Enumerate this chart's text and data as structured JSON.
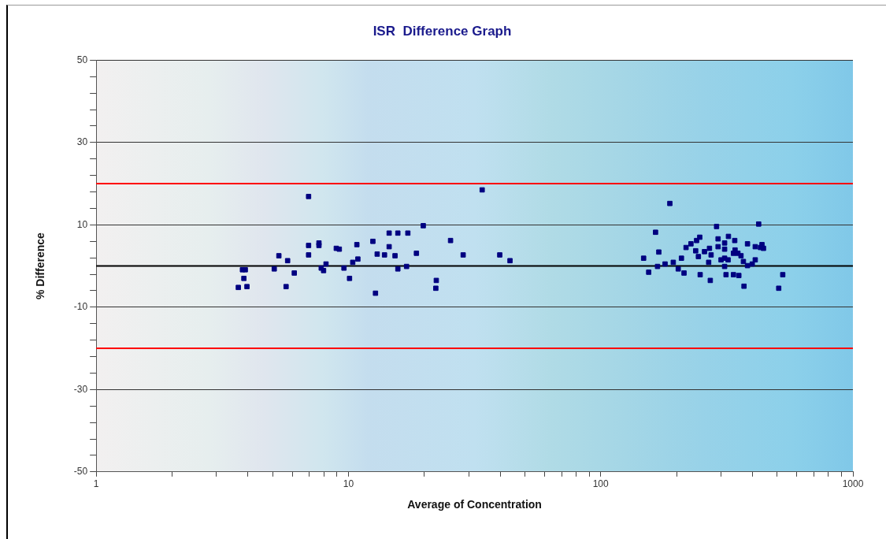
{
  "chart_data": {
    "type": "scatter",
    "title": "ISR  Difference Graph",
    "xlabel": "Average of Concentration",
    "ylabel": "% Difference",
    "log": "x",
    "marker": "square",
    "grid": "y",
    "legend": false,
    "xlim": [
      1,
      1000
    ],
    "xticks": [
      1,
      {
        "value": 2,
        "label": null
      },
      {
        "value": 3,
        "label": null
      },
      {
        "value": 4,
        "label": null
      },
      {
        "value": 5,
        "label": null
      },
      {
        "value": 6,
        "label": null
      },
      {
        "value": 7,
        "label": null
      },
      {
        "value": 8,
        "label": null
      },
      {
        "value": 9,
        "label": null
      },
      10,
      {
        "value": 20,
        "label": null
      },
      {
        "value": 30,
        "label": null
      },
      {
        "value": 40,
        "label": null
      },
      {
        "value": 50,
        "label": null
      },
      {
        "value": 60,
        "label": null
      },
      {
        "value": 70,
        "label": null
      },
      {
        "value": 80,
        "label": null
      },
      {
        "value": 90,
        "label": null
      },
      100,
      {
        "value": 200,
        "label": null
      },
      {
        "value": 300,
        "label": null
      },
      {
        "value": 400,
        "label": null
      },
      {
        "value": 500,
        "label": null
      },
      {
        "value": 600,
        "label": null
      },
      {
        "value": 700,
        "label": null
      },
      {
        "value": 800,
        "label": null
      },
      {
        "value": 900,
        "label": null
      },
      1000
    ],
    "ylim": [
      -50,
      50
    ],
    "yticks": [
      -50,
      {
        "value": -46,
        "label": null
      },
      {
        "value": -42,
        "label": null
      },
      {
        "value": -38,
        "label": null
      },
      {
        "value": -34,
        "label": null
      },
      -30,
      {
        "value": -26,
        "label": null
      },
      {
        "value": -22,
        "label": null
      },
      {
        "value": -18,
        "label": null
      },
      {
        "value": -14,
        "label": null
      },
      -10,
      {
        "value": -6,
        "label": null
      },
      {
        "value": -2,
        "label": null
      },
      {
        "value": 2,
        "label": null
      },
      {
        "value": 6,
        "label": null
      },
      10,
      {
        "value": 14,
        "label": null
      },
      {
        "value": 18,
        "label": null
      },
      {
        "value": 22,
        "label": null
      },
      {
        "value": 26,
        "label": null
      },
      30,
      {
        "value": 34,
        "label": null
      },
      {
        "value": 38,
        "label": null
      },
      {
        "value": 42,
        "label": null
      },
      {
        "value": 46,
        "label": null
      },
      50
    ],
    "ref_lines": [
      {
        "axis": "y",
        "value": 0,
        "color": "#000000"
      },
      {
        "axis": "y",
        "value": 20,
        "color": "#ff0000"
      },
      {
        "axis": "y",
        "value": -20,
        "color": "#ff0000"
      }
    ],
    "series": [
      {
        "color": "#000080",
        "x": [
          3.66,
          3.8,
          3.9,
          3.85,
          3.96,
          5.08,
          5.3,
          5.74,
          5.66,
          6.1,
          6.95,
          6.95,
          6.95,
          7.64,
          7.64,
          7.8,
          7.97,
          8.15,
          8.95,
          9.2,
          9.6,
          10.1,
          10.4,
          10.9,
          10.8,
          12.5,
          13.0,
          12.8,
          13.9,
          14.5,
          14.5,
          15.3,
          15.7,
          15.7,
          17.2,
          17.0,
          18.6,
          19.8,
          22.2,
          22.3,
          25.4,
          28.5,
          33.9,
          39.8,
          43.7,
          188,
          165,
          170,
          148,
          155,
          168,
          180,
          194,
          209,
          203,
          214,
          218,
          228,
          240,
          247,
          238,
          244,
          248,
          258,
          270,
          274,
          268,
          272,
          288,
          292,
          292,
          300,
          310,
          310,
          310,
          310,
          314,
          320,
          321,
          340,
          336,
          336,
          341,
          353,
          350,
          360,
          368,
          370,
          382,
          382,
          399,
          410,
          423,
          410,
          436,
          442,
          430,
          527,
          508
        ],
        "values": [
          -5.2,
          -0.9,
          -0.9,
          -3.0,
          -5.0,
          -0.7,
          2.5,
          1.3,
          -5.0,
          -1.7,
          16.9,
          5.0,
          2.7,
          5.6,
          5.0,
          -0.5,
          -1.1,
          0.5,
          4.3,
          4.1,
          -0.5,
          -3.0,
          0.9,
          1.7,
          5.2,
          6.0,
          2.9,
          -6.6,
          2.7,
          8.0,
          4.7,
          2.5,
          -0.7,
          8.0,
          8.0,
          -0.1,
          3.1,
          9.8,
          -5.4,
          -3.5,
          6.2,
          2.7,
          18.5,
          2.7,
          1.3,
          15.2,
          8.2,
          3.4,
          1.9,
          -1.5,
          -0.1,
          0.5,
          0.9,
          1.9,
          -0.7,
          -1.7,
          4.5,
          5.4,
          6.2,
          7.0,
          3.7,
          2.3,
          -2.1,
          3.5,
          4.3,
          2.7,
          0.9,
          -3.5,
          9.6,
          6.6,
          4.7,
          1.5,
          5.6,
          4.1,
          1.9,
          -0.1,
          -2.1,
          1.5,
          7.2,
          6.2,
          -2.1,
          3.1,
          3.9,
          -2.3,
          3.1,
          2.5,
          1.1,
          -4.9,
          5.4,
          0.1,
          0.5,
          1.5,
          10.2,
          4.7,
          5.2,
          4.3,
          4.5,
          -2.1,
          -5.4
        ]
      }
    ]
  }
}
